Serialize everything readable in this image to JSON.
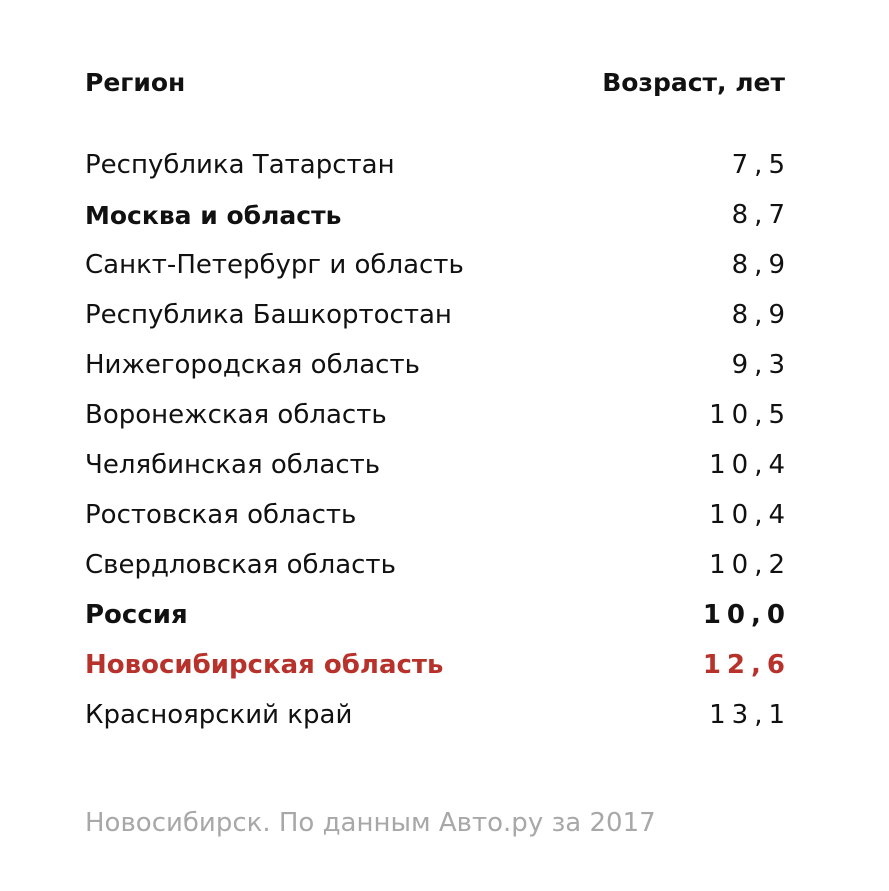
{
  "table": {
    "headers": {
      "region": "Регион",
      "age": "Возраст, лет"
    },
    "rows": [
      {
        "region": "Республика Татарстан",
        "age": "7,5",
        "style": "normal"
      },
      {
        "region": "Москва и область",
        "age": "8,7",
        "style": "region-bold"
      },
      {
        "region": "Санкт-Петербург и область",
        "age": "8,9",
        "style": "normal"
      },
      {
        "region": "Республика Башкортостан",
        "age": "8,9",
        "style": "normal"
      },
      {
        "region": "Нижегородская область",
        "age": "9,3",
        "style": "normal"
      },
      {
        "region": "Воронежская область",
        "age": "10,5",
        "style": "normal"
      },
      {
        "region": "Челябинская область",
        "age": "10,4",
        "style": "normal"
      },
      {
        "region": "Ростовская область",
        "age": "10,4",
        "style": "normal"
      },
      {
        "region": "Свердловская область",
        "age": "10,2",
        "style": "normal"
      },
      {
        "region": "Россия",
        "age": "10,0",
        "style": "bold"
      },
      {
        "region": "Новосибирская область",
        "age": "12,6",
        "style": "highlight"
      },
      {
        "region": "Красноярский край",
        "age": "13,1",
        "style": "normal"
      }
    ]
  },
  "source": "Новосибирск. По данным Авто.ру за 2017",
  "colors": {
    "text": "#111111",
    "highlight": "#b8322c",
    "source": "#a8a8a8"
  }
}
